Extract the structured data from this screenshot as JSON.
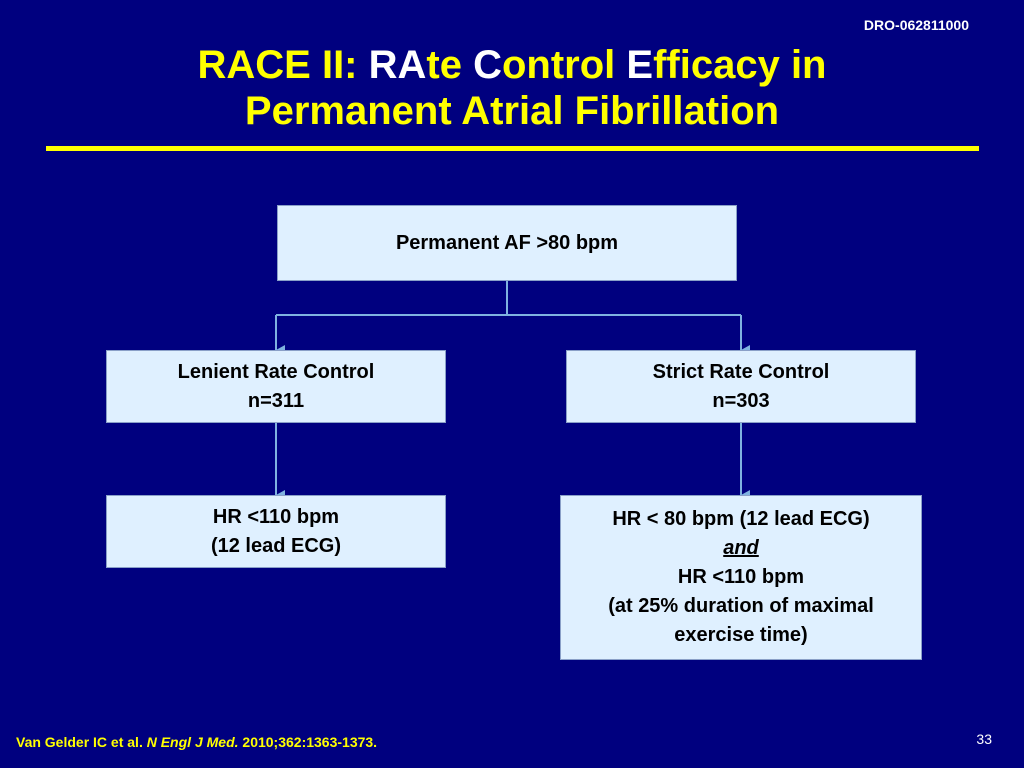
{
  "doc_code": "DRO-062811000",
  "title": {
    "part1": "RACE II: ",
    "part2": "RA",
    "part3": "te ",
    "part4": "C",
    "part5": "ontrol ",
    "part6": "E",
    "part7": "fficacy in",
    "line2": "Permanent Atrial Fibrillation"
  },
  "diagram": {
    "root": "Permanent AF >80 bpm",
    "left_arm": {
      "label": "Lenient Rate Control",
      "n": "n=311"
    },
    "right_arm": {
      "label": "Strict Rate Control",
      "n": "n=303"
    },
    "left_target": {
      "line1": "HR <110 bpm",
      "line2": "(12 lead ECG)"
    },
    "right_target": {
      "line1": "HR < 80 bpm (12 lead ECG)",
      "line2": "and",
      "line3": "HR <110 bpm",
      "line4": "(at 25% duration of maximal",
      "line5": "exercise time)"
    },
    "line_color": "#7fb2e0",
    "box_color": "#dff0ff"
  },
  "citation": {
    "authors": "Van Gelder IC et al. ",
    "journal": "N Engl J Med.",
    "ref": " 2010;362:1363-1373."
  },
  "page_number": "33"
}
